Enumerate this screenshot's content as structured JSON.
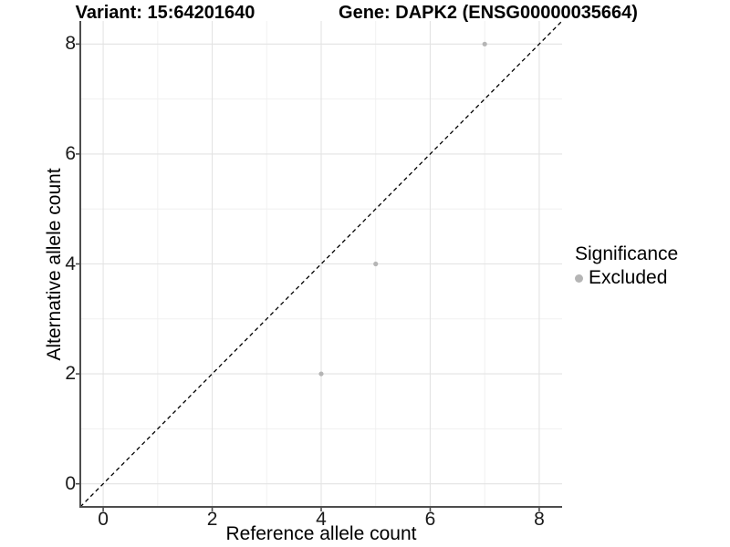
{
  "chart_data": {
    "type": "scatter",
    "title_left": "Variant: 15:64201640",
    "title_right": "Gene: DAPK2 (ENSG00000035664)",
    "xlabel": "Reference allele count",
    "ylabel": "Alternative allele count",
    "xaxis": {
      "ticks": [
        0,
        2,
        4,
        6,
        8
      ],
      "minor_ticks": [
        1,
        3,
        5,
        7
      ],
      "range": [
        -0.42,
        8.42
      ]
    },
    "yaxis": {
      "ticks": [
        0,
        2,
        4,
        6,
        8
      ],
      "minor_ticks": [
        1,
        3,
        5,
        7
      ],
      "range": [
        -0.42,
        8.42
      ]
    },
    "grid": "major-and-minor",
    "series": [
      {
        "name": "Excluded",
        "color": "#b5b5b5",
        "points": [
          {
            "x": 4,
            "y": 2
          },
          {
            "x": 5,
            "y": 4
          },
          {
            "x": 7,
            "y": 8
          }
        ]
      }
    ],
    "reference_line": {
      "kind": "identity",
      "slope": 1,
      "intercept": 0,
      "style": "dashed",
      "color": "#000000"
    },
    "legend": {
      "title": "Significance",
      "position": "right",
      "entries": [
        {
          "label": "Excluded",
          "color": "#b5b5b5"
        }
      ]
    },
    "colors": {
      "background": "#ffffff",
      "grid_major": "#e3e3e3",
      "grid_minor": "#f0f0f0",
      "axis_line": "#4d4d4d",
      "tick_mark": "#4d4d4d",
      "point": "#b5b5b5"
    }
  }
}
